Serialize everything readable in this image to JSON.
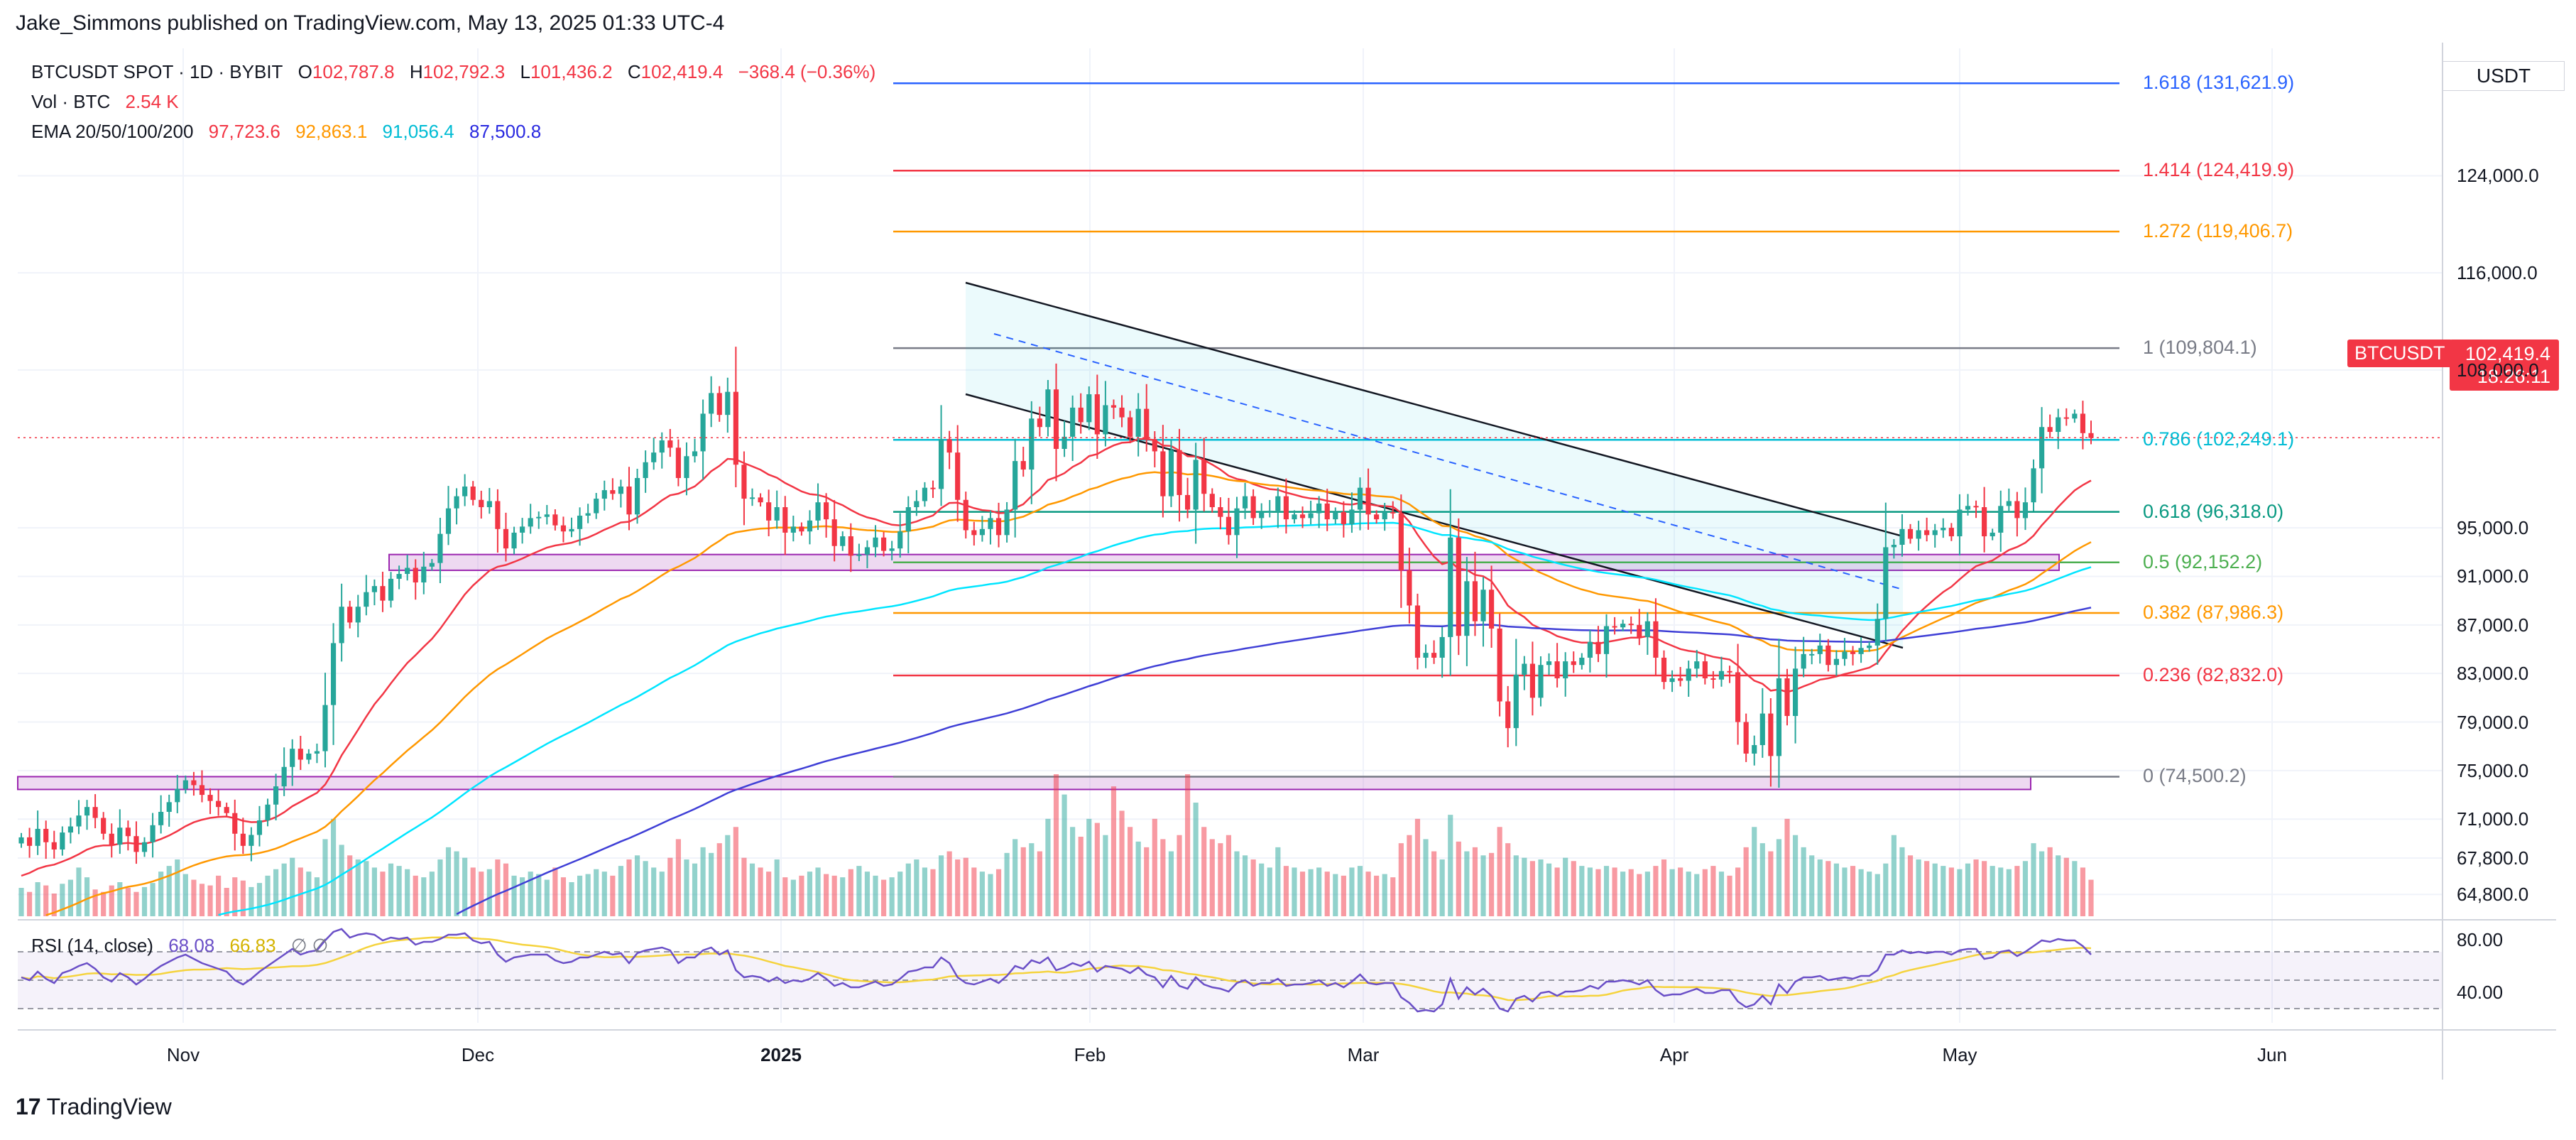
{
  "publisher": "Jake_Simmons published on TradingView.com, May 13, 2025 01:33 UTC-4",
  "footer": {
    "logo_text": "TradingView",
    "logo_mark": "17"
  },
  "legend": {
    "symbol": "BTCUSDT SPOT · 1D · BYBIT",
    "open_label": "O",
    "open": "102,787.8",
    "high_label": "H",
    "high": "102,792.3",
    "low_label": "L",
    "low": "101,436.2",
    "close_label": "C",
    "close": "102,419.4",
    "change": "−368.4 (−0.36%)",
    "vol_label": "Vol · BTC",
    "vol": "2.54 K",
    "ema_label": "EMA 20/50/100/200",
    "ema20": "97,723.6",
    "ema50": "92,863.1",
    "ema100": "91,056.4",
    "ema200": "87,500.8"
  },
  "price_axis": {
    "unit": "USDT",
    "current_symbol": "BTCUSDT",
    "current_price": "102,419.4",
    "countdown": "18:26:11"
  },
  "rsi": {
    "label": "RSI (14, close)",
    "value": "68.08",
    "ma": "66.83"
  },
  "colors": {
    "up": "#26a69a",
    "down": "#f23645",
    "ema20": "#f23645",
    "ema50": "#ff9800",
    "ema100": "#00e5ff",
    "ema200": "#3f3fd6",
    "rsi": "#6a4fc7",
    "rsi_ma": "#f5d33d"
  },
  "chart_data": {
    "type": "candlestick",
    "title": "BTCUSDT SPOT · 1D · BYBIT",
    "price_range": [
      63000,
      134500
    ],
    "y_ticks": [
      124000,
      116000,
      108000,
      95000,
      91000,
      87000,
      83000,
      79000,
      75000,
      71000,
      67800,
      64800
    ],
    "y_tick_labels": [
      "124,000.0",
      "116,000.0",
      "108,000.0",
      "95,000.0",
      "91,000.0",
      "87,000.0",
      "83,000.0",
      "79,000.0",
      "75,000.0",
      "71,000.0",
      "67,800.0",
      "64,800.0"
    ],
    "rsi_ticks": [
      "80.00",
      "40.00"
    ],
    "x_tick_labels": [
      "Nov",
      "Dec",
      "2025",
      "Feb",
      "Mar",
      "Apr",
      "May",
      "Jun"
    ],
    "fibonacci": [
      {
        "level": "1.618",
        "price": 131621.9,
        "label": "1.618 (131,621.9)",
        "color": "#2962ff"
      },
      {
        "level": "1.414",
        "price": 124419.9,
        "label": "1.414 (124,419.9)",
        "color": "#f23645"
      },
      {
        "level": "1.272",
        "price": 119406.7,
        "label": "1.272 (119,406.7)",
        "color": "#ff9800"
      },
      {
        "level": "1",
        "price": 109804.1,
        "label": "1 (109,804.1)",
        "color": "#787b86"
      },
      {
        "level": "0.786",
        "price": 102249.1,
        "label": "0.786 (102,249.1)",
        "color": "#00bcd4"
      },
      {
        "level": "0.618",
        "price": 96318.0,
        "label": "0.618 (96,318.0)",
        "color": "#089981"
      },
      {
        "level": "0.5",
        "price": 92152.2,
        "label": "0.5 (92,152.2)",
        "color": "#4caf50"
      },
      {
        "level": "0.382",
        "price": 87986.3,
        "label": "0.382 (87,986.3)",
        "color": "#ff9800"
      },
      {
        "level": "0.236",
        "price": 82832.0,
        "label": "0.236 (82,832.0)",
        "color": "#f23645"
      },
      {
        "level": "0",
        "price": 74500.2,
        "label": "0 (74,500.2)",
        "color": "#787b86"
      }
    ],
    "support_zones": [
      {
        "name": "upper-zone",
        "low": 91500,
        "high": 92800
      },
      {
        "name": "lower-zone",
        "low": 73500,
        "high": 74500
      }
    ],
    "closes": [
      69500,
      68800,
      70200,
      69100,
      68500,
      69900,
      70400,
      71300,
      72000,
      71100,
      69800,
      68900,
      70300,
      69600,
      68300,
      69100,
      70500,
      71600,
      72400,
      73500,
      74200,
      73800,
      73000,
      72500,
      72000,
      71500,
      69800,
      68800,
      69700,
      70900,
      72200,
      73700,
      75300,
      76800,
      75900,
      76400,
      76600,
      80400,
      85500,
      88500,
      87200,
      88500,
      89700,
      90200,
      89000,
      90800,
      91200,
      91700,
      90500,
      91800,
      92100,
      94500,
      96600,
      97600,
      98400,
      97300,
      96700,
      97200,
      94900,
      93300,
      94600,
      95100,
      95800,
      95900,
      96100,
      95200,
      94700,
      94900,
      96000,
      96200,
      97400,
      98100,
      97800,
      98400,
      96100,
      99100,
      100400,
      101200,
      102200,
      101600,
      99100,
      100900,
      101300,
      104400,
      106100,
      104300,
      106200,
      100200,
      97400,
      97500,
      97100,
      95600,
      96700,
      94600,
      95100,
      94700,
      95600,
      97100,
      95700,
      93500,
      94300,
      92700,
      92800,
      93400,
      94200,
      93100,
      93300,
      94700,
      96700,
      97200,
      98300,
      98200,
      102300,
      101200,
      97300,
      94800,
      94400,
      94900,
      95800,
      94400,
      96500,
      100500,
      99800,
      104000,
      103300,
      106400,
      101500,
      102500,
      104900,
      103700,
      106000,
      102700,
      105100,
      104900,
      104100,
      102500,
      104800,
      102300,
      101300,
      97600,
      101400,
      97700,
      96500,
      100600,
      97800,
      96700,
      95900,
      94400,
      96600,
      97600,
      95800,
      96300,
      96400,
      97600,
      95700,
      96100,
      95800,
      96200,
      97000,
      95700,
      96300,
      95300,
      96500,
      98300,
      96100,
      95700,
      96300,
      96200,
      91500,
      88600,
      84300,
      84700,
      84300,
      86000,
      94200,
      86100,
      90600,
      87300,
      89900,
      86700,
      80700,
      78500,
      82900,
      83800,
      81000,
      83700,
      84000,
      82600,
      84000,
      83700,
      84300,
      85600,
      84600,
      86900,
      86800,
      87100,
      87000,
      86000,
      87300,
      84300,
      82300,
      82600,
      82400,
      83400,
      84000,
      82600,
      82500,
      83200,
      83100,
      79000,
      76400,
      77100,
      79700,
      76200,
      82600,
      79500,
      83400,
      84600,
      84600,
      85300,
      83700,
      84200,
      84800,
      84600,
      85100,
      85300,
      87500,
      93400,
      93600,
      94900,
      94100,
      94800,
      94400,
      94800,
      95000,
      94300,
      96500,
      96800,
      96700,
      94300,
      94600,
      96800,
      97200,
      95800,
      97100,
      99900,
      103300,
      102900,
      104100,
      104000,
      104400,
      102800,
      102400
    ],
    "rsi_values": [
      52,
      50,
      56,
      51,
      48,
      55,
      57,
      60,
      62,
      58,
      52,
      49,
      55,
      52,
      47,
      51,
      56,
      60,
      63,
      66,
      68,
      65,
      62,
      60,
      58,
      56,
      50,
      47,
      51,
      56,
      60,
      64,
      68,
      72,
      68,
      70,
      71,
      78,
      84,
      86,
      80,
      82,
      83,
      82,
      78,
      80,
      79,
      80,
      75,
      77,
      77,
      79,
      82,
      82,
      83,
      78,
      76,
      77,
      68,
      63,
      66,
      67,
      68,
      68,
      68,
      64,
      62,
      63,
      66,
      66,
      68,
      70,
      68,
      69,
      62,
      69,
      71,
      72,
      73,
      71,
      62,
      66,
      66,
      71,
      73,
      68,
      71,
      57,
      52,
      53,
      52,
      49,
      52,
      48,
      50,
      49,
      51,
      55,
      51,
      46,
      48,
      45,
      45,
      47,
      49,
      46,
      47,
      51,
      56,
      57,
      59,
      59,
      66,
      62,
      52,
      48,
      47,
      49,
      51,
      48,
      53,
      60,
      58,
      64,
      62,
      66,
      57,
      59,
      62,
      60,
      63,
      56,
      60,
      59,
      58,
      55,
      59,
      54,
      52,
      45,
      53,
      46,
      44,
      52,
      47,
      45,
      44,
      42,
      48,
      50,
      46,
      48,
      48,
      51,
      46,
      47,
      47,
      48,
      50,
      46,
      48,
      45,
      49,
      54,
      48,
      47,
      48,
      48,
      38,
      34,
      28,
      29,
      28,
      33,
      51,
      37,
      45,
      40,
      44,
      39,
      30,
      28,
      37,
      39,
      35,
      41,
      42,
      39,
      42,
      42,
      43,
      46,
      44,
      49,
      49,
      50,
      49,
      47,
      50,
      43,
      39,
      40,
      40,
      42,
      44,
      41,
      41,
      43,
      43,
      35,
      31,
      33,
      39,
      33,
      47,
      41,
      49,
      52,
      52,
      53,
      50,
      51,
      52,
      51,
      53,
      53,
      57,
      68,
      68,
      71,
      69,
      70,
      69,
      70,
      70,
      68,
      71,
      72,
      72,
      65,
      66,
      70,
      71,
      67,
      70,
      74,
      78,
      77,
      79,
      78,
      78,
      74,
      68
    ],
    "volumes": [
      35,
      30,
      42,
      38,
      28,
      40,
      45,
      60,
      48,
      33,
      30,
      38,
      42,
      35,
      30,
      36,
      41,
      55,
      62,
      70,
      52,
      45,
      40,
      38,
      50,
      35,
      48,
      44,
      36,
      41,
      50,
      58,
      65,
      72,
      60,
      55,
      48,
      95,
      120,
      88,
      75,
      70,
      68,
      60,
      55,
      65,
      62,
      58,
      50,
      48,
      55,
      70,
      85,
      80,
      72,
      60,
      55,
      58,
      70,
      65,
      50,
      48,
      55,
      52,
      45,
      60,
      48,
      42,
      50,
      52,
      58,
      55,
      50,
      62,
      70,
      75,
      68,
      60,
      55,
      72,
      95,
      70,
      65,
      85,
      78,
      90,
      100,
      110,
      72,
      65,
      60,
      55,
      70,
      48,
      45,
      50,
      55,
      60,
      52,
      50,
      48,
      58,
      62,
      55,
      50,
      45,
      48,
      55,
      65,
      70,
      60,
      58,
      75,
      80,
      70,
      72,
      60,
      55,
      52,
      58,
      78,
      95,
      85,
      90,
      80,
      120,
      175,
      150,
      110,
      98,
      120,
      115,
      100,
      160,
      130,
      110,
      92,
      85,
      120,
      95,
      80,
      100,
      175,
      140,
      110,
      95,
      90,
      100,
      80,
      75,
      70,
      65,
      60,
      85,
      62,
      60,
      55,
      58,
      60,
      55,
      52,
      50,
      60,
      62,
      55,
      50,
      52,
      48,
      90,
      100,
      120,
      95,
      80,
      70,
      125,
      92,
      80,
      85,
      75,
      78,
      110,
      90,
      75,
      72,
      68,
      70,
      65,
      60,
      72,
      68,
      62,
      60,
      58,
      62,
      60,
      55,
      58,
      52,
      55,
      62,
      70,
      58,
      60,
      55,
      52,
      58,
      62,
      55,
      50,
      60,
      85,
      110,
      90,
      80,
      95,
      120,
      100,
      85,
      75,
      70,
      68,
      65,
      60,
      62,
      58,
      55,
      52,
      65,
      100,
      85,
      75,
      70,
      68,
      65,
      62,
      60,
      58,
      65,
      70,
      68,
      62,
      60,
      58,
      62,
      68,
      90,
      80,
      85,
      75,
      72,
      68,
      60,
      45
    ]
  }
}
